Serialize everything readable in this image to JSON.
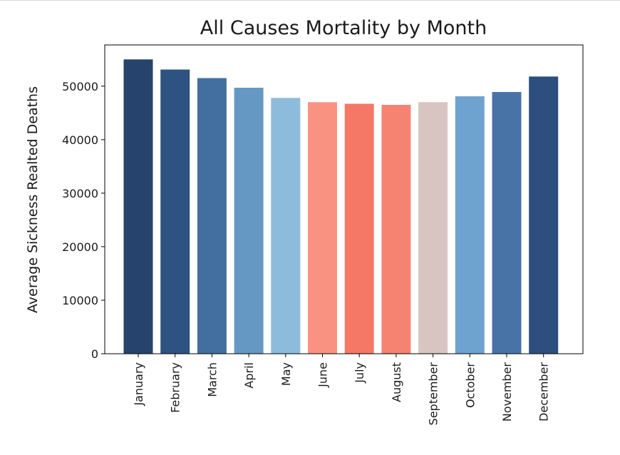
{
  "chart_data": {
    "type": "bar",
    "title": "All Causes Mortality by Month",
    "xlabel": "",
    "ylabel": "Average Sickness Realted Deaths",
    "ylim": [
      0,
      57700
    ],
    "yticks": [
      0,
      10000,
      20000,
      30000,
      40000,
      50000
    ],
    "ytick_labels": [
      "0",
      "10000",
      "20000",
      "30000",
      "40000",
      "50000"
    ],
    "categories": [
      "January",
      "February",
      "March",
      "April",
      "May",
      "June",
      "July",
      "August",
      "September",
      "October",
      "November",
      "December"
    ],
    "values": [
      55000,
      53100,
      51500,
      49700,
      47800,
      47000,
      46700,
      46500,
      47000,
      48100,
      48900,
      51800
    ],
    "colors": [
      "#26436e",
      "#2e5282",
      "#436fa0",
      "#6599c4",
      "#8dbbdb",
      "#fa9282",
      "#f57867",
      "#f68371",
      "#d8c5c2",
      "#6ea3cf",
      "#4873a7",
      "#2c4f7d"
    ],
    "grid": false,
    "legend": "none"
  }
}
